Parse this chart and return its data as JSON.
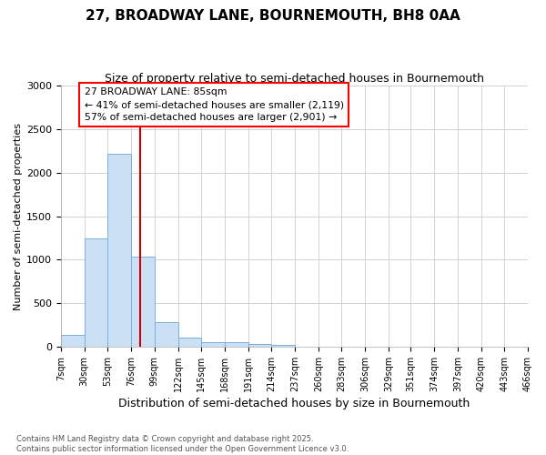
{
  "title1": "27, BROADWAY LANE, BOURNEMOUTH, BH8 0AA",
  "title2": "Size of property relative to semi-detached houses in Bournemouth",
  "xlabel": "Distribution of semi-detached houses by size in Bournemouth",
  "ylabel": "Number of semi-detached properties",
  "bin_edges": [
    7,
    30,
    53,
    76,
    99,
    122,
    145,
    168,
    191,
    214,
    237,
    260,
    283,
    306,
    329,
    351,
    374,
    397,
    420,
    443,
    466
  ],
  "bar_heights": [
    140,
    1240,
    2220,
    1030,
    285,
    100,
    55,
    50,
    35,
    20,
    0,
    0,
    0,
    0,
    0,
    0,
    0,
    0,
    0,
    0
  ],
  "bar_color": "#cce0f5",
  "bar_edge_color": "#7ab0d8",
  "property_size": 85,
  "red_line_color": "#cc0000",
  "annotation_title": "27 BROADWAY LANE: 85sqm",
  "annotation_line2": "← 41% of semi-detached houses are smaller (2,119)",
  "annotation_line3": "57% of semi-detached houses are larger (2,901) →",
  "ylim": [
    0,
    3000
  ],
  "yticks": [
    0,
    500,
    1000,
    1500,
    2000,
    2500,
    3000
  ],
  "background_color": "#ffffff",
  "plot_bg_color": "#ffffff",
  "footer1": "Contains HM Land Registry data © Crown copyright and database right 2025.",
  "footer2": "Contains public sector information licensed under the Open Government Licence v3.0."
}
